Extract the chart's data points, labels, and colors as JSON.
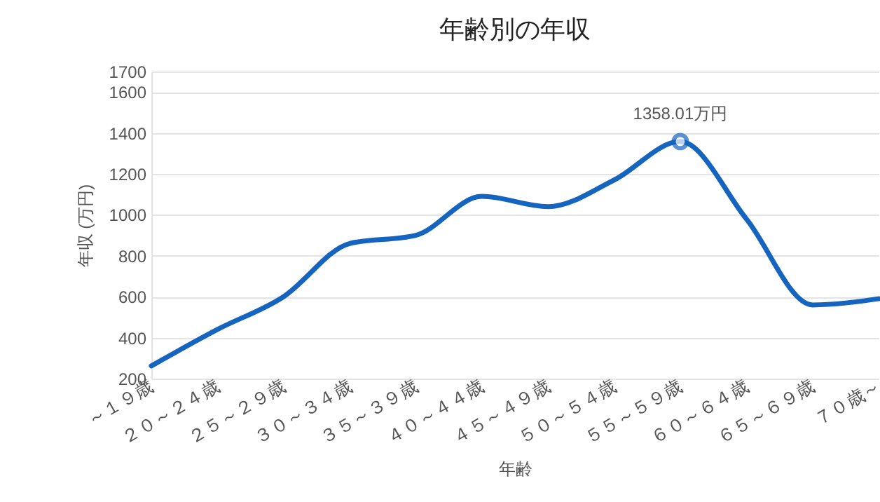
{
  "chart_data": {
    "type": "line",
    "title": "年齢別の年収",
    "xlabel": "年齢",
    "ylabel": "年収 (万円)",
    "categories": [
      "～１９歳",
      "２０～２４歳",
      "２５～２９歳",
      "３０～３４歳",
      "３５～３９歳",
      "４０～４４歳",
      "４５～４９歳",
      "５０～５４歳",
      "５５～５９歳",
      "６０～６４歳",
      "６５～６９歳",
      "７０歳～"
    ],
    "series": [
      {
        "color": "#1565c0",
        "values": [
          262,
          440,
          600,
          860,
          900,
          1090,
          1040,
          1170,
          1358.01,
          980,
          560,
          590
        ]
      }
    ],
    "ylim": [
      200,
      1700
    ],
    "yticks": [
      200,
      400,
      600,
      800,
      1000,
      1200,
      1400,
      1600,
      1700
    ],
    "grid": "y",
    "marker": "none",
    "line_style": "solid",
    "annotations": [
      {
        "text": "1358.01万円",
        "x": "５５～５９歳",
        "y": 1358.01
      }
    ]
  }
}
